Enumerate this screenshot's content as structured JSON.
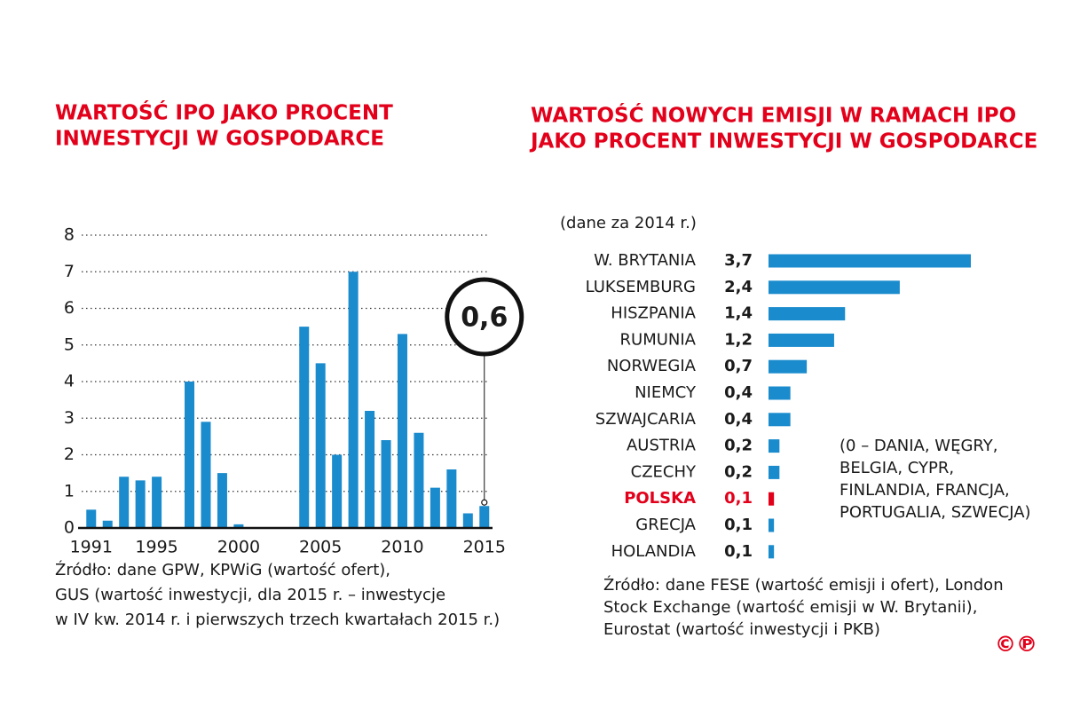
{
  "chart_data": [
    {
      "type": "bar",
      "title": [
        "WARTOŚĆ IPO JAKO PROCENT",
        "INWESTYCJI W GOSPODARCE"
      ],
      "x": [
        1991,
        1992,
        1993,
        1994,
        1995,
        1996,
        1997,
        1998,
        1999,
        2000,
        2001,
        2002,
        2003,
        2004,
        2005,
        2006,
        2007,
        2008,
        2009,
        2010,
        2011,
        2012,
        2013,
        2014,
        2015
      ],
      "values": [
        0.5,
        0.2,
        1.4,
        1.3,
        1.4,
        0,
        4.0,
        2.9,
        1.5,
        0.1,
        0,
        0,
        0,
        5.5,
        4.5,
        2.0,
        7.0,
        3.2,
        2.4,
        5.3,
        2.6,
        1.1,
        1.6,
        0.4,
        0.6
      ],
      "color": "#1a8bcd",
      "xlim": [
        1990.2,
        2015.5
      ],
      "xticks": [
        1991,
        1995,
        2000,
        2005,
        2010,
        2015
      ],
      "ylim": [
        0,
        8
      ],
      "yticks": [
        0,
        1,
        2,
        3,
        4,
        5,
        6,
        7,
        8
      ],
      "grid": true,
      "annotation": "0,6",
      "source": [
        "Źródło: dane GPW, KPWiG (wartość ofert),",
        "GUS (wartość inwestycji, dla 2015 r. – inwestycje",
        "w IV kw. 2014 r. i pierwszych trzech kwartałach 2015 r.)"
      ]
    },
    {
      "type": "barh",
      "title": [
        "WARTOŚĆ NOWYCH EMISJI W RAMACH IPO",
        "JAKO PROCENT INWESTYCJI W GOSPODARCE"
      ],
      "subtitle": "(dane za 2014 r.)",
      "categories": [
        "W. BRYTANIA",
        "LUKSEMBURG",
        "HISZPANIA",
        "RUMUNIA",
        "NORWEGIA",
        "NIEMCY",
        "SZWAJCARIA",
        "AUSTRIA",
        "CZECHY",
        "POLSKA",
        "GRECJA",
        "HOLANDIA"
      ],
      "values": [
        3.7,
        2.4,
        1.4,
        1.2,
        0.7,
        0.4,
        0.4,
        0.2,
        0.2,
        0.1,
        0.1,
        0.1
      ],
      "value_labels": [
        "3,7",
        "2,4",
        "1,4",
        "1,2",
        "0,7",
        "0,4",
        "0,4",
        "0,2",
        "0,2",
        "0,1",
        "0,1",
        "0,1"
      ],
      "colors": [
        "#1a8bcd",
        "#1a8bcd",
        "#1a8bcd",
        "#1a8bcd",
        "#1a8bcd",
        "#1a8bcd",
        "#1a8bcd",
        "#1a8bcd",
        "#1a8bcd",
        "#e2001a",
        "#1a8bcd",
        "#1a8bcd"
      ],
      "xlim": [
        0,
        3.7
      ],
      "note": [
        "(0 – DANIA, WĘGRY,",
        "BELGIA, CYPR,",
        "FINLANDIA, FRANCJA,",
        "PORTUGALIA, SZWECJA)"
      ],
      "source": [
        "Źródło: dane FESE (wartość emisji i ofert), London",
        "Stock Exchange (wartość emisji w W. Brytanii),",
        "Eurostat (wartość inwestycji i PKB)"
      ]
    }
  ],
  "logo": "©℗"
}
